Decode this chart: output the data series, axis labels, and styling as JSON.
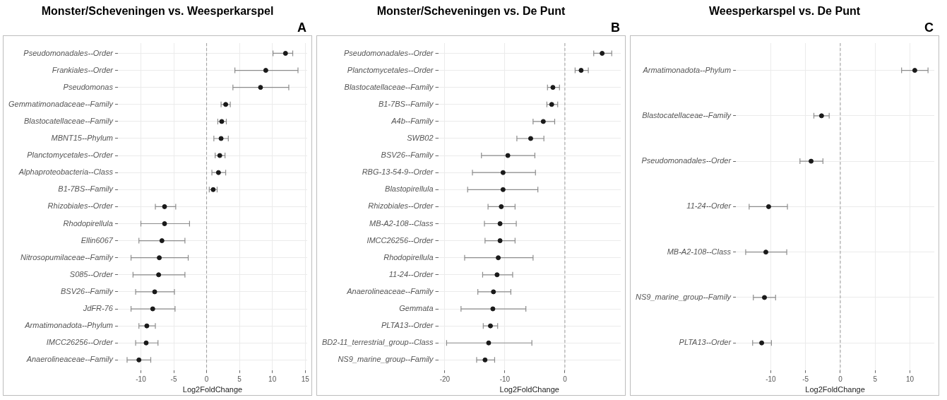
{
  "chart_data": [
    {
      "type": "scatter",
      "orientation": "horizontal",
      "title": "Monster/Scheveningen vs. Weesperkarspel",
      "annotations": [
        "A"
      ],
      "xlabel": "Log2FoldChange",
      "marker": "circle",
      "grid": true,
      "categories": [
        "Pseudomonadales--Order",
        "Frankiales--Order",
        "Pseudomonas",
        "Gemmatimonadaceae--Family",
        "Blastocatellaceae--Family",
        "MBNT15--Phylum",
        "Planctomycetales--Order",
        "Alphaproteobacteria--Class",
        "B1-7BS--Family",
        "Rhizobiales--Order",
        "Rhodopirellula",
        "Ellin6067",
        "Nitrosopumilaceae--Family",
        "S085--Order",
        "BSV26--Family",
        "JdFR-76",
        "Armatimonadota--Phylum",
        "IMCC26256--Order",
        "Anaerolineaceae--Family"
      ],
      "series": [
        {
          "color": "#1a1a1a",
          "values": [
            12.0,
            9.0,
            8.2,
            2.9,
            2.3,
            2.2,
            2.0,
            1.8,
            1.0,
            -6.4,
            -6.4,
            -6.8,
            -7.2,
            -7.3,
            -7.9,
            -8.2,
            -9.1,
            -9.2,
            -10.3
          ],
          "errors": [
            [
              10.1,
              13.1
            ],
            [
              4.3,
              13.9
            ],
            [
              4.0,
              12.5
            ],
            [
              2.2,
              3.6
            ],
            [
              1.7,
              3.0
            ],
            [
              1.1,
              3.3
            ],
            [
              1.3,
              2.8
            ],
            [
              0.8,
              2.9
            ],
            [
              0.4,
              1.6
            ],
            [
              -7.8,
              -4.7
            ],
            [
              -10.0,
              -2.6
            ],
            [
              -10.3,
              -3.3
            ],
            [
              -11.5,
              -2.8
            ],
            [
              -11.2,
              -3.3
            ],
            [
              -10.8,
              -4.9
            ],
            [
              -11.5,
              -4.8
            ],
            [
              -10.3,
              -7.8
            ],
            [
              -10.8,
              -7.4
            ],
            [
              -12.1,
              -8.5
            ]
          ]
        }
      ],
      "xlim": [
        -13.5,
        15.3
      ],
      "xticks": [
        -10,
        -5,
        0,
        5,
        10,
        15
      ],
      "ref_lines": [
        {
          "axis": "x",
          "value": 0,
          "line_style": "dashed",
          "color": "#9e9e9e"
        }
      ]
    },
    {
      "type": "scatter",
      "orientation": "horizontal",
      "title": "Monster/Scheveningen vs. De Punt",
      "annotations": [
        "B"
      ],
      "xlabel": "Log2FoldChange",
      "marker": "circle",
      "grid": true,
      "categories": [
        "Pseudomonadales--Order",
        "Planctomycetales--Order",
        "Blastocatellaceae--Family",
        "B1-7BS--Family",
        "A4b--Family",
        "SWB02",
        "BSV26--Family",
        "RBG-13-54-9--Order",
        "Blastopirellula",
        "Rhizobiales--Order",
        "MB-A2-108--Class",
        "IMCC26256--Order",
        "Rhodopirellula",
        "11-24--Order",
        "Anaerolineaceae--Family",
        "Gemmata",
        "PLTA13--Order",
        "BD2-11_terrestrial_group--Class",
        "NS9_marine_group--Family"
      ],
      "series": [
        {
          "color": "#1a1a1a",
          "values": [
            6.2,
            2.7,
            -2.0,
            -2.2,
            -3.6,
            -5.7,
            -9.5,
            -10.3,
            -10.3,
            -10.6,
            -10.8,
            -10.8,
            -11.1,
            -11.3,
            -11.9,
            -12.0,
            -12.4,
            -12.7,
            -13.3
          ],
          "errors": [
            [
              4.8,
              7.8
            ],
            [
              1.7,
              3.9
            ],
            [
              -2.9,
              -0.9
            ],
            [
              -3.0,
              -1.2
            ],
            [
              -5.3,
              -1.7
            ],
            [
              -8.0,
              -3.5
            ],
            [
              -13.9,
              -5.0
            ],
            [
              -15.4,
              -4.9
            ],
            [
              -16.2,
              -4.5
            ],
            [
              -12.8,
              -8.3
            ],
            [
              -13.4,
              -8.1
            ],
            [
              -13.3,
              -8.3
            ],
            [
              -16.7,
              -5.3
            ],
            [
              -13.7,
              -8.7
            ],
            [
              -14.5,
              -9.0
            ],
            [
              -17.3,
              -6.5
            ],
            [
              -13.6,
              -11.2
            ],
            [
              -19.7,
              -5.5
            ],
            [
              -14.7,
              -11.7
            ]
          ]
        }
      ],
      "xlim": [
        -21.1,
        9.3
      ],
      "xticks": [
        -20,
        -10,
        0
      ],
      "ref_lines": [
        {
          "axis": "x",
          "value": 0,
          "line_style": "dashed",
          "color": "#9e9e9e"
        }
      ]
    },
    {
      "type": "scatter",
      "orientation": "horizontal",
      "title": "Weesperkarspel vs. De Punt",
      "annotations": [
        "C"
      ],
      "xlabel": "Log2FoldChange",
      "marker": "circle",
      "grid": true,
      "categories": [
        "Armatimonadota--Phylum",
        "Blastocatellaceae--Family",
        "Pseudomonadales--Order",
        "11-24--Order",
        "MB-A2-108--Class",
        "NS9_marine_group--Family",
        "PLTA13--Order"
      ],
      "series": [
        {
          "color": "#1a1a1a",
          "values": [
            10.7,
            -2.7,
            -4.2,
            -10.3,
            -10.7,
            -10.9,
            -11.3
          ],
          "errors": [
            [
              8.8,
              12.6
            ],
            [
              -3.8,
              -1.6
            ],
            [
              -5.8,
              -2.5
            ],
            [
              -13.1,
              -7.6
            ],
            [
              -13.6,
              -7.7
            ],
            [
              -12.5,
              -9.3
            ],
            [
              -12.6,
              -9.9
            ]
          ]
        }
      ],
      "xlim": [
        -15,
        13.5
      ],
      "xticks": [
        -10,
        -5,
        0,
        5,
        10
      ],
      "ref_lines": [
        {
          "axis": "x",
          "value": 0,
          "line_style": "dashed",
          "color": "#9e9e9e"
        }
      ]
    }
  ]
}
